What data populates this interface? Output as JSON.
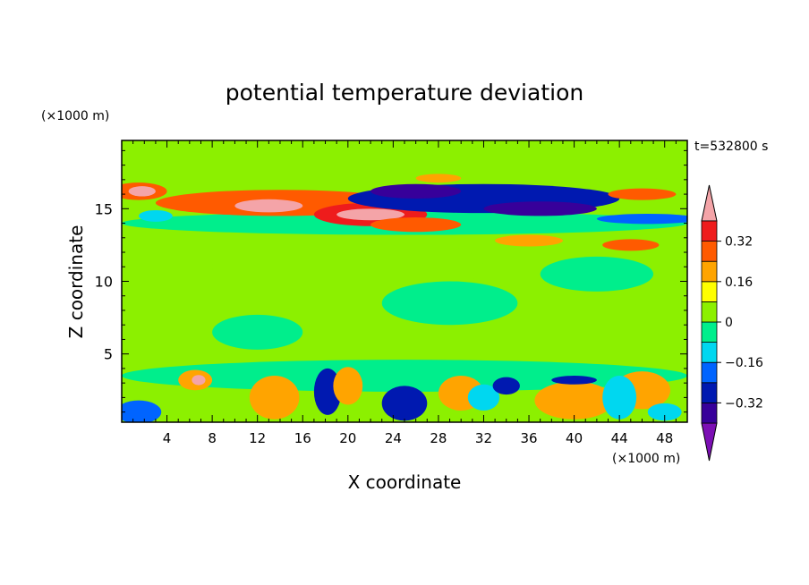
{
  "chart_data": {
    "type": "heatmap",
    "title": "potential temperature deviation",
    "xlabel": "X coordinate",
    "ylabel": "Z coordinate",
    "x_unit": "(×1000 m)",
    "y_unit": "(×1000 m)",
    "time_label": "t=532800 s",
    "xlim": [
      0,
      50
    ],
    "ylim": [
      0.3,
      19.7
    ],
    "x_ticks": [
      4,
      8,
      12,
      16,
      20,
      24,
      28,
      32,
      36,
      40,
      44,
      48
    ],
    "y_ticks": [
      5,
      10,
      15
    ],
    "colorbar": {
      "levels": [
        -0.48,
        -0.4,
        -0.32,
        -0.24,
        -0.16,
        -0.08,
        0,
        0.08,
        0.16,
        0.24,
        0.32,
        0.4
      ],
      "labels": [
        {
          "value": 0.32,
          "text": "0.32"
        },
        {
          "value": 0.16,
          "text": "0.16"
        },
        {
          "value": 0,
          "text": "0"
        },
        {
          "value": -0.16,
          "text": "−0.16"
        },
        {
          "value": -0.32,
          "text": "−0.32"
        }
      ],
      "colors": [
        "#7c0fb4",
        "#37009a",
        "#0019b0",
        "#0064ff",
        "#00d7f0",
        "#00ee8c",
        "#8cf000",
        "#ffff00",
        "#ffa400",
        "#ff5a00",
        "#ee1c1c",
        "#f4a4a8"
      ],
      "extend": "both"
    },
    "background_value": 0.04,
    "features": [
      {
        "x": [
          0,
          50
        ],
        "z": [
          0.3,
          19.7
        ],
        "value": 0.04,
        "shape": "box"
      },
      {
        "x": [
          0,
          8
        ],
        "z": [
          3.5,
          19.7
        ],
        "value": 0.0,
        "shape": "box"
      },
      {
        "x": 20,
        "z": 11,
        "rx": 12,
        "rz": 2.2,
        "value": 0.0
      },
      {
        "x": 38,
        "z": 7,
        "rx": 9,
        "rz": 2.5,
        "value": 0.0
      },
      {
        "x": 15,
        "z": 19,
        "rx": 8,
        "rz": 1.2,
        "value": 0.0
      },
      {
        "x": 46,
        "z": 18.5,
        "rx": 4,
        "rz": 1.5,
        "value": 0.0
      },
      {
        "x": 25,
        "z": 3.5,
        "rx": 25,
        "rz": 1.1,
        "value": -0.02
      },
      {
        "x": 25,
        "z": 14,
        "rx": 25,
        "rz": 0.8,
        "value": -0.05
      },
      {
        "x": 1.5,
        "z": 16.2,
        "rx": 2.5,
        "rz": 0.6,
        "value": 0.28
      },
      {
        "x": 1.8,
        "z": 16.2,
        "rx": 1.2,
        "rz": 0.35,
        "value": 0.42
      },
      {
        "x": 3,
        "z": 14.5,
        "rx": 1.5,
        "rz": 0.4,
        "value": -0.15
      },
      {
        "x": 14,
        "z": 15.4,
        "rx": 11,
        "rz": 0.9,
        "value": 0.28
      },
      {
        "x": 13,
        "z": 15.2,
        "rx": 3,
        "rz": 0.45,
        "value": 0.42
      },
      {
        "x": 22,
        "z": 14.6,
        "rx": 5,
        "rz": 0.8,
        "value": 0.32
      },
      {
        "x": 22,
        "z": 14.6,
        "rx": 3,
        "rz": 0.4,
        "value": 0.42
      },
      {
        "x": 26,
        "z": 13.9,
        "rx": 4,
        "rz": 0.5,
        "value": 0.3
      },
      {
        "x": 32,
        "z": 15.7,
        "rx": 12,
        "rz": 1.0,
        "value": -0.32
      },
      {
        "x": 26,
        "z": 16.2,
        "rx": 4,
        "rz": 0.5,
        "value": -0.4
      },
      {
        "x": 37,
        "z": 15.0,
        "rx": 5,
        "rz": 0.5,
        "value": -0.4
      },
      {
        "x": 46.5,
        "z": 14.3,
        "rx": 4.5,
        "rz": 0.35,
        "value": -0.2
      },
      {
        "x": 46,
        "z": 16.0,
        "rx": 3,
        "rz": 0.4,
        "value": 0.3
      },
      {
        "x": 45,
        "z": 12.5,
        "rx": 2.5,
        "rz": 0.4,
        "value": 0.3
      },
      {
        "x": 36,
        "z": 12.8,
        "rx": 3,
        "rz": 0.4,
        "value": 0.2
      },
      {
        "x": 28,
        "z": 17.1,
        "rx": 2,
        "rz": 0.3,
        "value": 0.18
      },
      {
        "x": 6.5,
        "z": 3.2,
        "rx": 1.5,
        "rz": 0.7,
        "value": 0.2
      },
      {
        "x": 6.8,
        "z": 3.2,
        "rx": 0.6,
        "rz": 0.35,
        "value": 0.42
      },
      {
        "x": 1.5,
        "z": 1.0,
        "rx": 2,
        "rz": 0.8,
        "value": -0.2
      },
      {
        "x": 13.5,
        "z": 2.0,
        "rx": 2.2,
        "rz": 1.5,
        "value": 0.2
      },
      {
        "x": 18.2,
        "z": 2.4,
        "rx": 1.2,
        "rz": 1.6,
        "value": -0.28
      },
      {
        "x": 20,
        "z": 2.8,
        "rx": 1.3,
        "rz": 1.3,
        "value": 0.16
      },
      {
        "x": 25,
        "z": 1.6,
        "rx": 2,
        "rz": 1.2,
        "value": -0.25
      },
      {
        "x": 30,
        "z": 2.3,
        "rx": 2,
        "rz": 1.2,
        "value": 0.16
      },
      {
        "x": 32,
        "z": 2.0,
        "rx": 1.4,
        "rz": 0.9,
        "value": -0.1
      },
      {
        "x": 34,
        "z": 2.8,
        "rx": 1.2,
        "rz": 0.6,
        "value": -0.3
      },
      {
        "x": 40,
        "z": 1.8,
        "rx": 3.5,
        "rz": 1.3,
        "value": 0.2
      },
      {
        "x": 40,
        "z": 3.2,
        "rx": 2,
        "rz": 0.3,
        "value": -0.3
      },
      {
        "x": 46,
        "z": 2.5,
        "rx": 2.5,
        "rz": 1.3,
        "value": 0.2
      },
      {
        "x": 44,
        "z": 2.0,
        "rx": 1.5,
        "rz": 1.5,
        "value": -0.12
      },
      {
        "x": 48,
        "z": 1.0,
        "rx": 1.5,
        "rz": 0.6,
        "value": -0.15
      },
      {
        "x": 12,
        "z": 6.5,
        "rx": 4,
        "rz": 1.2,
        "value": -0.05
      },
      {
        "x": 29,
        "z": 8.5,
        "rx": 6,
        "rz": 1.5,
        "value": -0.05
      },
      {
        "x": 42,
        "z": 10.5,
        "rx": 5,
        "rz": 1.2,
        "value": -0.05
      }
    ]
  }
}
